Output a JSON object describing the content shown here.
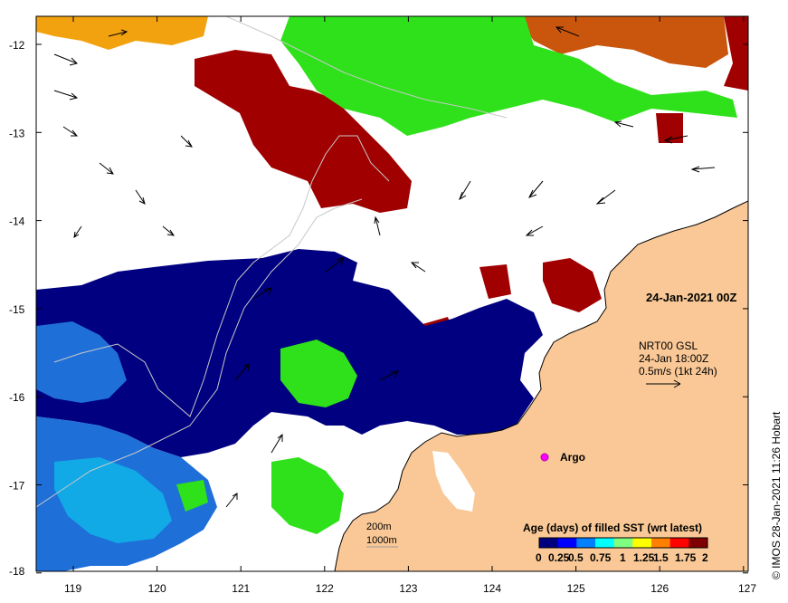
{
  "map": {
    "date_label": "24-Jan-2021 00Z",
    "current_info": {
      "line1": "NRT00 GSL",
      "line2": "24-Jan 18:00Z",
      "line3": "0.5m/s (1kt 24h)"
    },
    "argo_label": "Argo",
    "contours": {
      "label_200": "200m",
      "label_1000": "1000m"
    },
    "credit": "©  IMOS 28-Jan-2021 11:26 Hobart",
    "x_ticks": [
      "119",
      "120",
      "121",
      "122",
      "123",
      "124",
      "125",
      "126",
      "127"
    ],
    "y_ticks": [
      "-12",
      "-13",
      "-14",
      "-15",
      "-16",
      "-17",
      "-18"
    ],
    "legend": {
      "title": "Age (days) of filled SST (wrt latest)",
      "tick_labels": [
        "0",
        "0.25",
        "0.5",
        "0.75",
        "1",
        "1.25",
        "1.5",
        "1.75",
        "2"
      ],
      "colors": [
        "#00007f",
        "#0000ff",
        "#007fff",
        "#00ffff",
        "#7fff7f",
        "#ffff00",
        "#ff7f00",
        "#ff0000",
        "#7f0000"
      ]
    },
    "colors": {
      "land": "#f9c896",
      "age_dark_blue": "#000080",
      "age_blue": "#1e6fd8",
      "age_cyan": "#11a9e6",
      "age_green": "#2ee11a",
      "age_orange": "#f2a20e",
      "age_rust": "#c9560c",
      "age_dark_red": "#a00000",
      "argo": "#ff00ff"
    }
  }
}
